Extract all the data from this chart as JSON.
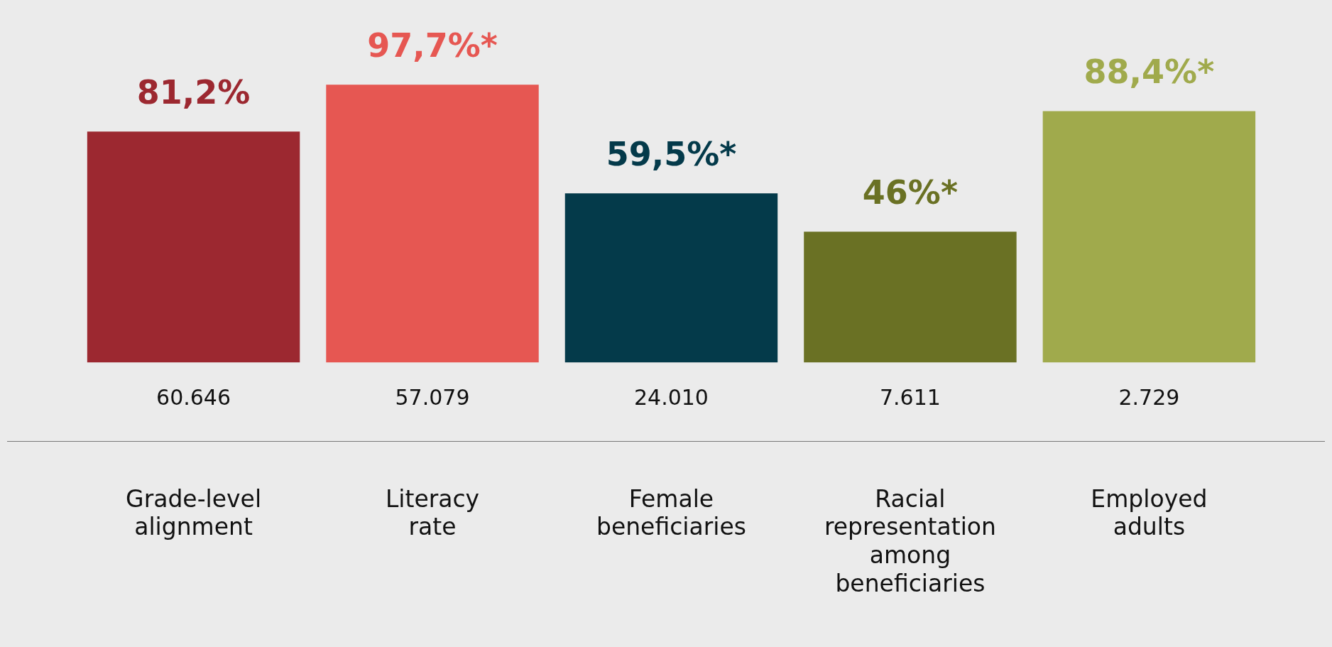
{
  "chart_data": {
    "type": "bar",
    "categories": [
      "Grade-level alignment",
      "Literacy rate",
      "Female beneficiaries",
      "Racial representation among beneficiaries",
      "Employed adults"
    ],
    "values": [
      81.2,
      97.7,
      59.5,
      46,
      88.4
    ],
    "colors": [
      "#9c2830",
      "#e65752",
      "#043a4a",
      "#6a7124",
      "#a0aa4c"
    ],
    "value_labels": [
      "81,2%",
      "97,7%*",
      "59,5%*",
      "46%*",
      "88,4%*"
    ],
    "annotations": [
      "60.646",
      "57.079",
      "24.010",
      "7.611",
      "2.729"
    ],
    "grid": false,
    "legend": false
  }
}
